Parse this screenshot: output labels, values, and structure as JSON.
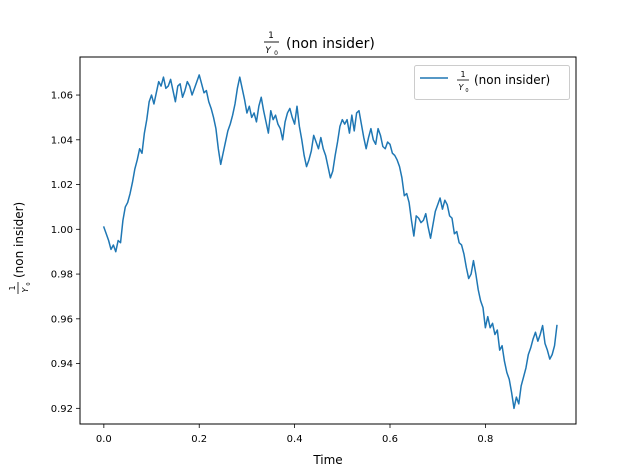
{
  "figure": {
    "title_numerator": "1",
    "title_denominator": "Y",
    "title_denominator_sub": "0",
    "title_suffix": "(non insider)"
  },
  "chart_data": {
    "type": "line",
    "xlabel": "Time",
    "ylabel_numerator": "1",
    "ylabel_denominator": "Y",
    "ylabel_denominator_sub": "0",
    "ylabel_suffix": "(non insider)",
    "xlim": [
      -0.05,
      0.99
    ],
    "ylim": [
      0.913,
      1.077
    ],
    "x_ticks": [
      0.0,
      0.2,
      0.4,
      0.6,
      0.8
    ],
    "x_tick_labels": [
      "0.0",
      "0.2",
      "0.4",
      "0.6",
      "0.8"
    ],
    "y_ticks": [
      0.92,
      0.94,
      0.96,
      0.98,
      1.0,
      1.02,
      1.04,
      1.06
    ],
    "y_tick_labels": [
      "0.92",
      "0.94",
      "0.96",
      "0.98",
      "1.00",
      "1.02",
      "1.04",
      "1.06"
    ],
    "grid": false,
    "legend_position": "top-right",
    "color": "#1f77b4",
    "series": [
      {
        "name_numerator": "1",
        "name_denominator": "Y",
        "name_denominator_sub": "0",
        "name_suffix": "(non insider)",
        "x": [
          0.0,
          0.005,
          0.01,
          0.015,
          0.02,
          0.025,
          0.03,
          0.035,
          0.04,
          0.045,
          0.05,
          0.055,
          0.06,
          0.065,
          0.07,
          0.075,
          0.08,
          0.085,
          0.09,
          0.095,
          0.1,
          0.105,
          0.11,
          0.115,
          0.12,
          0.125,
          0.13,
          0.135,
          0.14,
          0.145,
          0.15,
          0.155,
          0.16,
          0.165,
          0.17,
          0.175,
          0.18,
          0.185,
          0.19,
          0.195,
          0.2,
          0.205,
          0.21,
          0.215,
          0.22,
          0.225,
          0.23,
          0.235,
          0.24,
          0.245,
          0.25,
          0.255,
          0.26,
          0.265,
          0.27,
          0.275,
          0.28,
          0.285,
          0.29,
          0.295,
          0.3,
          0.305,
          0.31,
          0.315,
          0.32,
          0.325,
          0.33,
          0.335,
          0.34,
          0.345,
          0.35,
          0.355,
          0.36,
          0.365,
          0.37,
          0.375,
          0.38,
          0.385,
          0.39,
          0.395,
          0.4,
          0.405,
          0.41,
          0.415,
          0.42,
          0.425,
          0.43,
          0.435,
          0.44,
          0.445,
          0.45,
          0.455,
          0.46,
          0.465,
          0.47,
          0.475,
          0.48,
          0.485,
          0.49,
          0.495,
          0.5,
          0.505,
          0.51,
          0.515,
          0.52,
          0.525,
          0.53,
          0.535,
          0.54,
          0.545,
          0.55,
          0.555,
          0.56,
          0.565,
          0.57,
          0.575,
          0.58,
          0.585,
          0.59,
          0.595,
          0.6,
          0.605,
          0.61,
          0.615,
          0.62,
          0.625,
          0.63,
          0.635,
          0.64,
          0.645,
          0.65,
          0.655,
          0.66,
          0.665,
          0.67,
          0.675,
          0.68,
          0.685,
          0.69,
          0.695,
          0.7,
          0.705,
          0.71,
          0.715,
          0.72,
          0.725,
          0.73,
          0.735,
          0.74,
          0.745,
          0.75,
          0.755,
          0.76,
          0.765,
          0.77,
          0.775,
          0.78,
          0.785,
          0.79,
          0.795,
          0.8,
          0.805,
          0.81,
          0.815,
          0.82,
          0.825,
          0.83,
          0.835,
          0.84,
          0.845,
          0.85,
          0.855,
          0.86,
          0.865,
          0.87,
          0.875,
          0.88,
          0.885,
          0.89,
          0.895,
          0.9,
          0.905,
          0.91,
          0.915,
          0.92,
          0.925,
          0.93,
          0.935,
          0.94,
          0.945,
          0.95
        ],
        "y": [
          1.001,
          0.998,
          0.995,
          0.991,
          0.993,
          0.99,
          0.995,
          0.994,
          1.004,
          1.01,
          1.012,
          1.016,
          1.021,
          1.027,
          1.031,
          1.036,
          1.034,
          1.043,
          1.049,
          1.057,
          1.06,
          1.056,
          1.061,
          1.066,
          1.064,
          1.068,
          1.063,
          1.064,
          1.067,
          1.062,
          1.057,
          1.064,
          1.065,
          1.059,
          1.062,
          1.066,
          1.064,
          1.06,
          1.063,
          1.066,
          1.069,
          1.065,
          1.061,
          1.062,
          1.057,
          1.054,
          1.05,
          1.045,
          1.036,
          1.029,
          1.034,
          1.039,
          1.044,
          1.047,
          1.051,
          1.056,
          1.063,
          1.068,
          1.063,
          1.058,
          1.052,
          1.055,
          1.05,
          1.052,
          1.048,
          1.055,
          1.059,
          1.053,
          1.048,
          1.043,
          1.053,
          1.049,
          1.051,
          1.047,
          1.045,
          1.04,
          1.048,
          1.052,
          1.054,
          1.05,
          1.047,
          1.055,
          1.046,
          1.04,
          1.033,
          1.028,
          1.031,
          1.035,
          1.042,
          1.039,
          1.036,
          1.041,
          1.036,
          1.033,
          1.028,
          1.023,
          1.026,
          1.033,
          1.039,
          1.046,
          1.049,
          1.047,
          1.049,
          1.043,
          1.051,
          1.044,
          1.052,
          1.053,
          1.047,
          1.041,
          1.036,
          1.041,
          1.045,
          1.04,
          1.038,
          1.045,
          1.042,
          1.037,
          1.036,
          1.039,
          1.038,
          1.034,
          1.033,
          1.031,
          1.028,
          1.023,
          1.015,
          1.016,
          1.012,
          1.004,
          0.997,
          1.006,
          1.005,
          1.003,
          1.004,
          1.007,
          1.001,
          0.996,
          1.002,
          1.008,
          1.011,
          1.014,
          1.009,
          1.013,
          1.011,
          1.006,
          1.005,
          0.998,
          0.999,
          0.994,
          0.993,
          0.989,
          0.983,
          0.978,
          0.98,
          0.986,
          0.98,
          0.973,
          0.968,
          0.965,
          0.956,
          0.961,
          0.956,
          0.958,
          0.953,
          0.955,
          0.946,
          0.948,
          0.941,
          0.936,
          0.933,
          0.927,
          0.92,
          0.925,
          0.922,
          0.93,
          0.934,
          0.938,
          0.944,
          0.947,
          0.951,
          0.954,
          0.95,
          0.953,
          0.957,
          0.949,
          0.946,
          0.942,
          0.944,
          0.948,
          0.957
        ]
      }
    ]
  }
}
